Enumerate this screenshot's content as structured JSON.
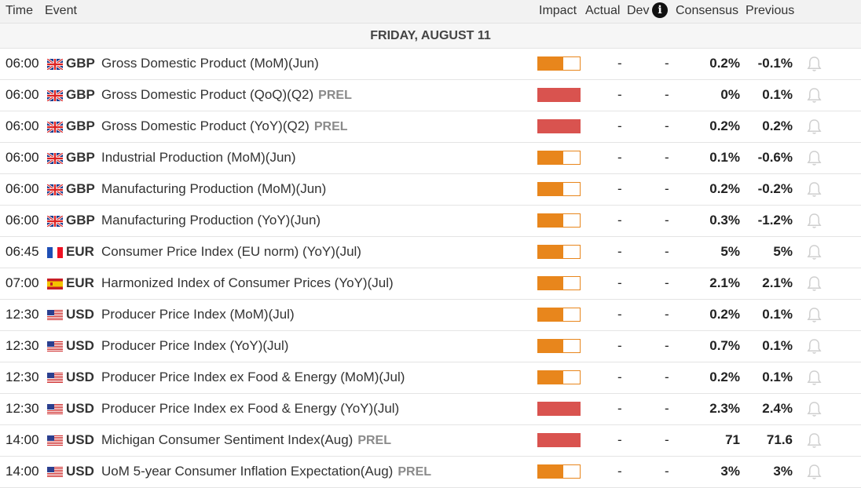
{
  "header": {
    "time": "Time",
    "event": "Event",
    "impact": "Impact",
    "actual": "Actual",
    "dev": "Dev",
    "info_icon": "i",
    "consensus": "Consensus",
    "previous": "Previous"
  },
  "date_label": "FRIDAY, AUGUST 11",
  "impact_colors": {
    "medium": "#e8861c",
    "high": "#d9534f"
  },
  "rows": [
    {
      "time": "06:00",
      "flag": "uk",
      "currency": "GBP",
      "event": "Gross Domestic Product (MoM)(Jun)",
      "prel": "",
      "impact": "medium",
      "actual": "-",
      "dev": "-",
      "consensus": "0.2%",
      "previous": "-0.1%"
    },
    {
      "time": "06:00",
      "flag": "uk",
      "currency": "GBP",
      "event": "Gross Domestic Product (QoQ)(Q2)",
      "prel": "PREL",
      "impact": "high",
      "actual": "-",
      "dev": "-",
      "consensus": "0%",
      "previous": "0.1%"
    },
    {
      "time": "06:00",
      "flag": "uk",
      "currency": "GBP",
      "event": "Gross Domestic Product (YoY)(Q2)",
      "prel": "PREL",
      "impact": "high",
      "actual": "-",
      "dev": "-",
      "consensus": "0.2%",
      "previous": "0.2%"
    },
    {
      "time": "06:00",
      "flag": "uk",
      "currency": "GBP",
      "event": "Industrial Production (MoM)(Jun)",
      "prel": "",
      "impact": "medium",
      "actual": "-",
      "dev": "-",
      "consensus": "0.1%",
      "previous": "-0.6%"
    },
    {
      "time": "06:00",
      "flag": "uk",
      "currency": "GBP",
      "event": "Manufacturing Production (MoM)(Jun)",
      "prel": "",
      "impact": "medium",
      "actual": "-",
      "dev": "-",
      "consensus": "0.2%",
      "previous": "-0.2%"
    },
    {
      "time": "06:00",
      "flag": "uk",
      "currency": "GBP",
      "event": "Manufacturing Production (YoY)(Jun)",
      "prel": "",
      "impact": "medium",
      "actual": "-",
      "dev": "-",
      "consensus": "0.3%",
      "previous": "-1.2%"
    },
    {
      "time": "06:45",
      "flag": "fr",
      "currency": "EUR",
      "event": "Consumer Price Index (EU norm) (YoY)(Jul)",
      "prel": "",
      "impact": "medium",
      "actual": "-",
      "dev": "-",
      "consensus": "5%",
      "previous": "5%"
    },
    {
      "time": "07:00",
      "flag": "es",
      "currency": "EUR",
      "event": "Harmonized Index of Consumer Prices (YoY)(Jul)",
      "prel": "",
      "impact": "medium",
      "actual": "-",
      "dev": "-",
      "consensus": "2.1%",
      "previous": "2.1%"
    },
    {
      "time": "12:30",
      "flag": "us",
      "currency": "USD",
      "event": "Producer Price Index (MoM)(Jul)",
      "prel": "",
      "impact": "medium",
      "actual": "-",
      "dev": "-",
      "consensus": "0.2%",
      "previous": "0.1%"
    },
    {
      "time": "12:30",
      "flag": "us",
      "currency": "USD",
      "event": "Producer Price Index (YoY)(Jul)",
      "prel": "",
      "impact": "medium",
      "actual": "-",
      "dev": "-",
      "consensus": "0.7%",
      "previous": "0.1%"
    },
    {
      "time": "12:30",
      "flag": "us",
      "currency": "USD",
      "event": "Producer Price Index ex Food & Energy (MoM)(Jul)",
      "prel": "",
      "impact": "medium",
      "actual": "-",
      "dev": "-",
      "consensus": "0.2%",
      "previous": "0.1%"
    },
    {
      "time": "12:30",
      "flag": "us",
      "currency": "USD",
      "event": "Producer Price Index ex Food & Energy (YoY)(Jul)",
      "prel": "",
      "impact": "high",
      "actual": "-",
      "dev": "-",
      "consensus": "2.3%",
      "previous": "2.4%"
    },
    {
      "time": "14:00",
      "flag": "us",
      "currency": "USD",
      "event": "Michigan Consumer Sentiment Index(Aug)",
      "prel": "PREL",
      "impact": "high",
      "actual": "-",
      "dev": "-",
      "consensus": "71",
      "previous": "71.6"
    },
    {
      "time": "14:00",
      "flag": "us",
      "currency": "USD",
      "event": "UoM 5-year Consumer Inflation Expectation(Aug)",
      "prel": "PREL",
      "impact": "medium",
      "actual": "-",
      "dev": "-",
      "consensus": "3%",
      "previous": "3%"
    }
  ]
}
